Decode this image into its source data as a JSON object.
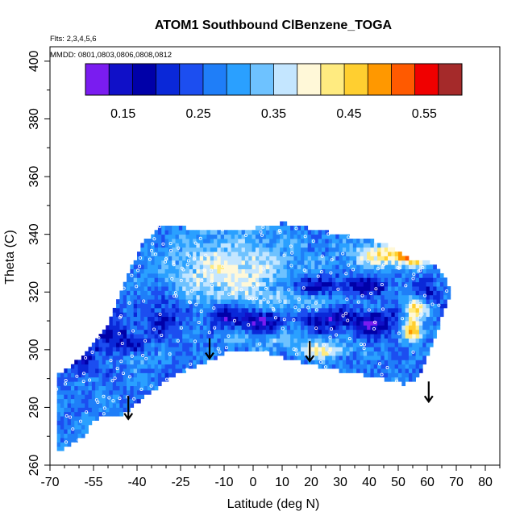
{
  "chart_data": {
    "type": "heatmap",
    "title": "ATOM1 Southbound ClBenzene_TOGA",
    "notes": [
      "Flts: 2,3,4,5,6",
      "MMDD: 0801,0803,0806,0808,0812"
    ],
    "xlabel": "Latitude (deg N)",
    "ylabel": "Theta (C)",
    "xlim": [
      -70,
      85
    ],
    "ylim": [
      260,
      405
    ],
    "x_ticks": [
      -70,
      -55,
      -40,
      -25,
      -10,
      0,
      10,
      20,
      30,
      40,
      50,
      60,
      70,
      80
    ],
    "x_tick_labels": [
      "-70",
      "-55",
      "-40",
      "-25",
      "-10",
      "0",
      "10",
      "20",
      "30",
      "40",
      "50",
      "60",
      "70",
      "80"
    ],
    "y_ticks": [
      260,
      280,
      300,
      320,
      340,
      360,
      380,
      400
    ],
    "y_tick_labels": [
      "260",
      "280",
      "300",
      "320",
      "340",
      "360",
      "380",
      "400"
    ],
    "colorbar": {
      "range": [
        0.1,
        0.6
      ],
      "ticks": [
        0.15,
        0.25,
        0.35,
        0.45,
        0.55
      ],
      "tick_labels": [
        "0.15",
        "0.25",
        "0.35",
        "0.45",
        "0.55"
      ],
      "colors": [
        "#7a1cf0",
        "#1010c8",
        "#0000a8",
        "#0a28d8",
        "#1c4ef0",
        "#1f7ef8",
        "#2aa0ff",
        "#6ec2ff",
        "#c4e6ff",
        "#fff8d8",
        "#ffeb80",
        "#ffcf30",
        "#ff9800",
        "#ff5a00",
        "#f00000",
        "#a52a2a"
      ]
    },
    "region_boundary": [
      [
        -68,
        265
      ],
      [
        -68,
        291
      ],
      [
        -58,
        298
      ],
      [
        -50,
        309
      ],
      [
        -45,
        322
      ],
      [
        -38,
        337
      ],
      [
        -32,
        343
      ],
      [
        -20,
        342
      ],
      [
        0,
        342
      ],
      [
        10,
        344
      ],
      [
        20,
        342
      ],
      [
        35,
        339
      ],
      [
        45,
        337
      ],
      [
        55,
        331
      ],
      [
        62,
        330
      ],
      [
        66,
        326
      ],
      [
        68,
        320
      ],
      [
        64,
        308
      ],
      [
        60,
        298
      ],
      [
        57,
        290
      ],
      [
        52,
        288
      ],
      [
        40,
        291
      ],
      [
        28,
        293
      ],
      [
        15,
        296
      ],
      [
        5,
        299
      ],
      [
        -5,
        300
      ],
      [
        -10,
        299
      ],
      [
        -15,
        296
      ],
      [
        -25,
        292
      ],
      [
        -33,
        287
      ],
      [
        -38,
        283
      ],
      [
        -44,
        278
      ],
      [
        -48,
        277
      ],
      [
        -55,
        276
      ],
      [
        -58,
        270
      ],
      [
        -68,
        264
      ]
    ],
    "background_value": 0.27,
    "features": [
      {
        "x": -2,
        "y": 326,
        "sx": 14,
        "sy": 10,
        "v": 0.36
      },
      {
        "x": -18,
        "y": 328,
        "sx": 10,
        "sy": 8,
        "v": 0.32
      },
      {
        "x": 45,
        "y": 333,
        "sx": 8,
        "sy": 3,
        "v": 0.42
      },
      {
        "x": 55,
        "y": 332,
        "sx": 4,
        "sy": 2,
        "v": 0.43
      },
      {
        "x": 24,
        "y": 300,
        "sx": 6,
        "sy": 2,
        "v": 0.4
      },
      {
        "x": 55,
        "y": 307,
        "sx": 2.2,
        "sy": 3,
        "v": 0.5
      },
      {
        "x": 57,
        "y": 315,
        "sx": 3,
        "sy": 2.5,
        "v": 0.45
      },
      {
        "x": 20,
        "y": 316,
        "sx": 9,
        "sy": 4,
        "v": 0.33
      },
      {
        "x": 5,
        "y": 304,
        "sx": 10,
        "sy": 3,
        "v": 0.32
      },
      {
        "x": -42,
        "y": 297,
        "sx": 3,
        "sy": 2,
        "v": 0.36
      },
      {
        "x": 2,
        "y": 310,
        "sx": 5,
        "sy": 3,
        "v": 0.1
      },
      {
        "x": -10,
        "y": 312,
        "sx": 4,
        "sy": 3,
        "v": 0.13
      },
      {
        "x": 25,
        "y": 311,
        "sx": 8,
        "sy": 3,
        "v": 0.14
      },
      {
        "x": 42,
        "y": 309,
        "sx": 5,
        "sy": 3,
        "v": 0.14
      },
      {
        "x": 20,
        "y": 322,
        "sx": 7,
        "sy": 2.5,
        "v": 0.15
      },
      {
        "x": 38,
        "y": 322,
        "sx": 5,
        "sy": 2.5,
        "v": 0.16
      },
      {
        "x": -45,
        "y": 302,
        "sx": 5,
        "sy": 4,
        "v": 0.18
      },
      {
        "x": -60,
        "y": 297,
        "sx": 4,
        "sy": 4,
        "v": 0.19
      },
      {
        "x": -30,
        "y": 312,
        "sx": 5,
        "sy": 5,
        "v": 0.2
      },
      {
        "x": -52,
        "y": 312,
        "sx": 4,
        "sy": 6,
        "v": 0.2
      },
      {
        "x": 60,
        "y": 318,
        "sx": 3,
        "sy": 3,
        "v": 0.18
      }
    ],
    "arrows": [
      {
        "x": -43,
        "y_top": 284,
        "y_bottom": 276
      },
      {
        "x": -15,
        "y_top": 304,
        "y_bottom": 297
      },
      {
        "x": 19.5,
        "y_top": 303,
        "y_bottom": 296
      },
      {
        "x": 60.5,
        "y_top": 289,
        "y_bottom": 282
      }
    ],
    "grid": false
  }
}
